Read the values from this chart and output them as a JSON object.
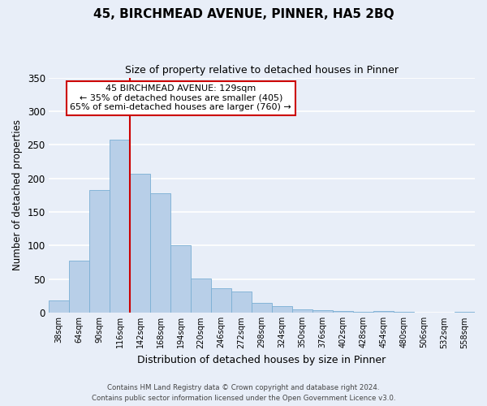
{
  "title": "45, BIRCHMEAD AVENUE, PINNER, HA5 2BQ",
  "subtitle": "Size of property relative to detached houses in Pinner",
  "xlabel": "Distribution of detached houses by size in Pinner",
  "ylabel": "Number of detached properties",
  "categories": [
    "38sqm",
    "64sqm",
    "90sqm",
    "116sqm",
    "142sqm",
    "168sqm",
    "194sqm",
    "220sqm",
    "246sqm",
    "272sqm",
    "298sqm",
    "324sqm",
    "350sqm",
    "376sqm",
    "402sqm",
    "428sqm",
    "454sqm",
    "480sqm",
    "506sqm",
    "532sqm",
    "558sqm"
  ],
  "bar_values": [
    18,
    77,
    183,
    257,
    207,
    178,
    100,
    51,
    36,
    31,
    14,
    10,
    5,
    4,
    2,
    1,
    3,
    1,
    0,
    0,
    1
  ],
  "bar_color": "#b8cfe8",
  "bar_edgecolor": "#7aafd4",
  "bar_width": 1.0,
  "vline_x": 3.5,
  "annotation_title": "45 BIRCHMEAD AVENUE: 129sqm",
  "annotation_line1": "← 35% of detached houses are smaller (405)",
  "annotation_line2": "65% of semi-detached houses are larger (760) →",
  "annotation_box_color": "#ffffff",
  "annotation_box_edgecolor": "#cc0000",
  "vline_color": "#cc0000",
  "ylim": [
    0,
    350
  ],
  "yticks": [
    0,
    50,
    100,
    150,
    200,
    250,
    300,
    350
  ],
  "footer_line1": "Contains HM Land Registry data © Crown copyright and database right 2024.",
  "footer_line2": "Contains public sector information licensed under the Open Government Licence v3.0.",
  "bg_color": "#e8eef8",
  "plot_bg_color": "#e8eef8"
}
